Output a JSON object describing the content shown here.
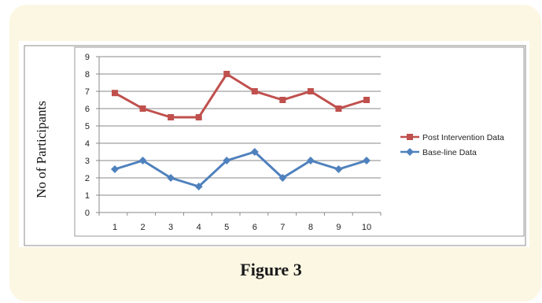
{
  "figure_caption": "Figure 3",
  "chart_data": {
    "type": "line",
    "title": "",
    "xlabel": "",
    "ylabel": "No of Participants",
    "categories": [
      "1",
      "2",
      "3",
      "4",
      "5",
      "6",
      "7",
      "8",
      "9",
      "10"
    ],
    "y_ticks": [
      "0",
      "1",
      "2",
      "3",
      "4",
      "5",
      "6",
      "7",
      "8",
      "9"
    ],
    "ylim": [
      0,
      9
    ],
    "grid": "horizontal",
    "legend_position": "right",
    "series": [
      {
        "name": "Post Intervention Data",
        "color": "#c0504d",
        "marker": "square",
        "values": [
          6.9,
          6,
          5.5,
          5.5,
          8,
          7,
          6.5,
          7,
          6,
          6.5
        ]
      },
      {
        "name": "Base-line Data",
        "color": "#4f81bd",
        "marker": "diamond",
        "values": [
          2.5,
          3,
          2,
          1.5,
          3,
          3.5,
          2,
          3,
          2.5,
          3
        ]
      }
    ]
  }
}
